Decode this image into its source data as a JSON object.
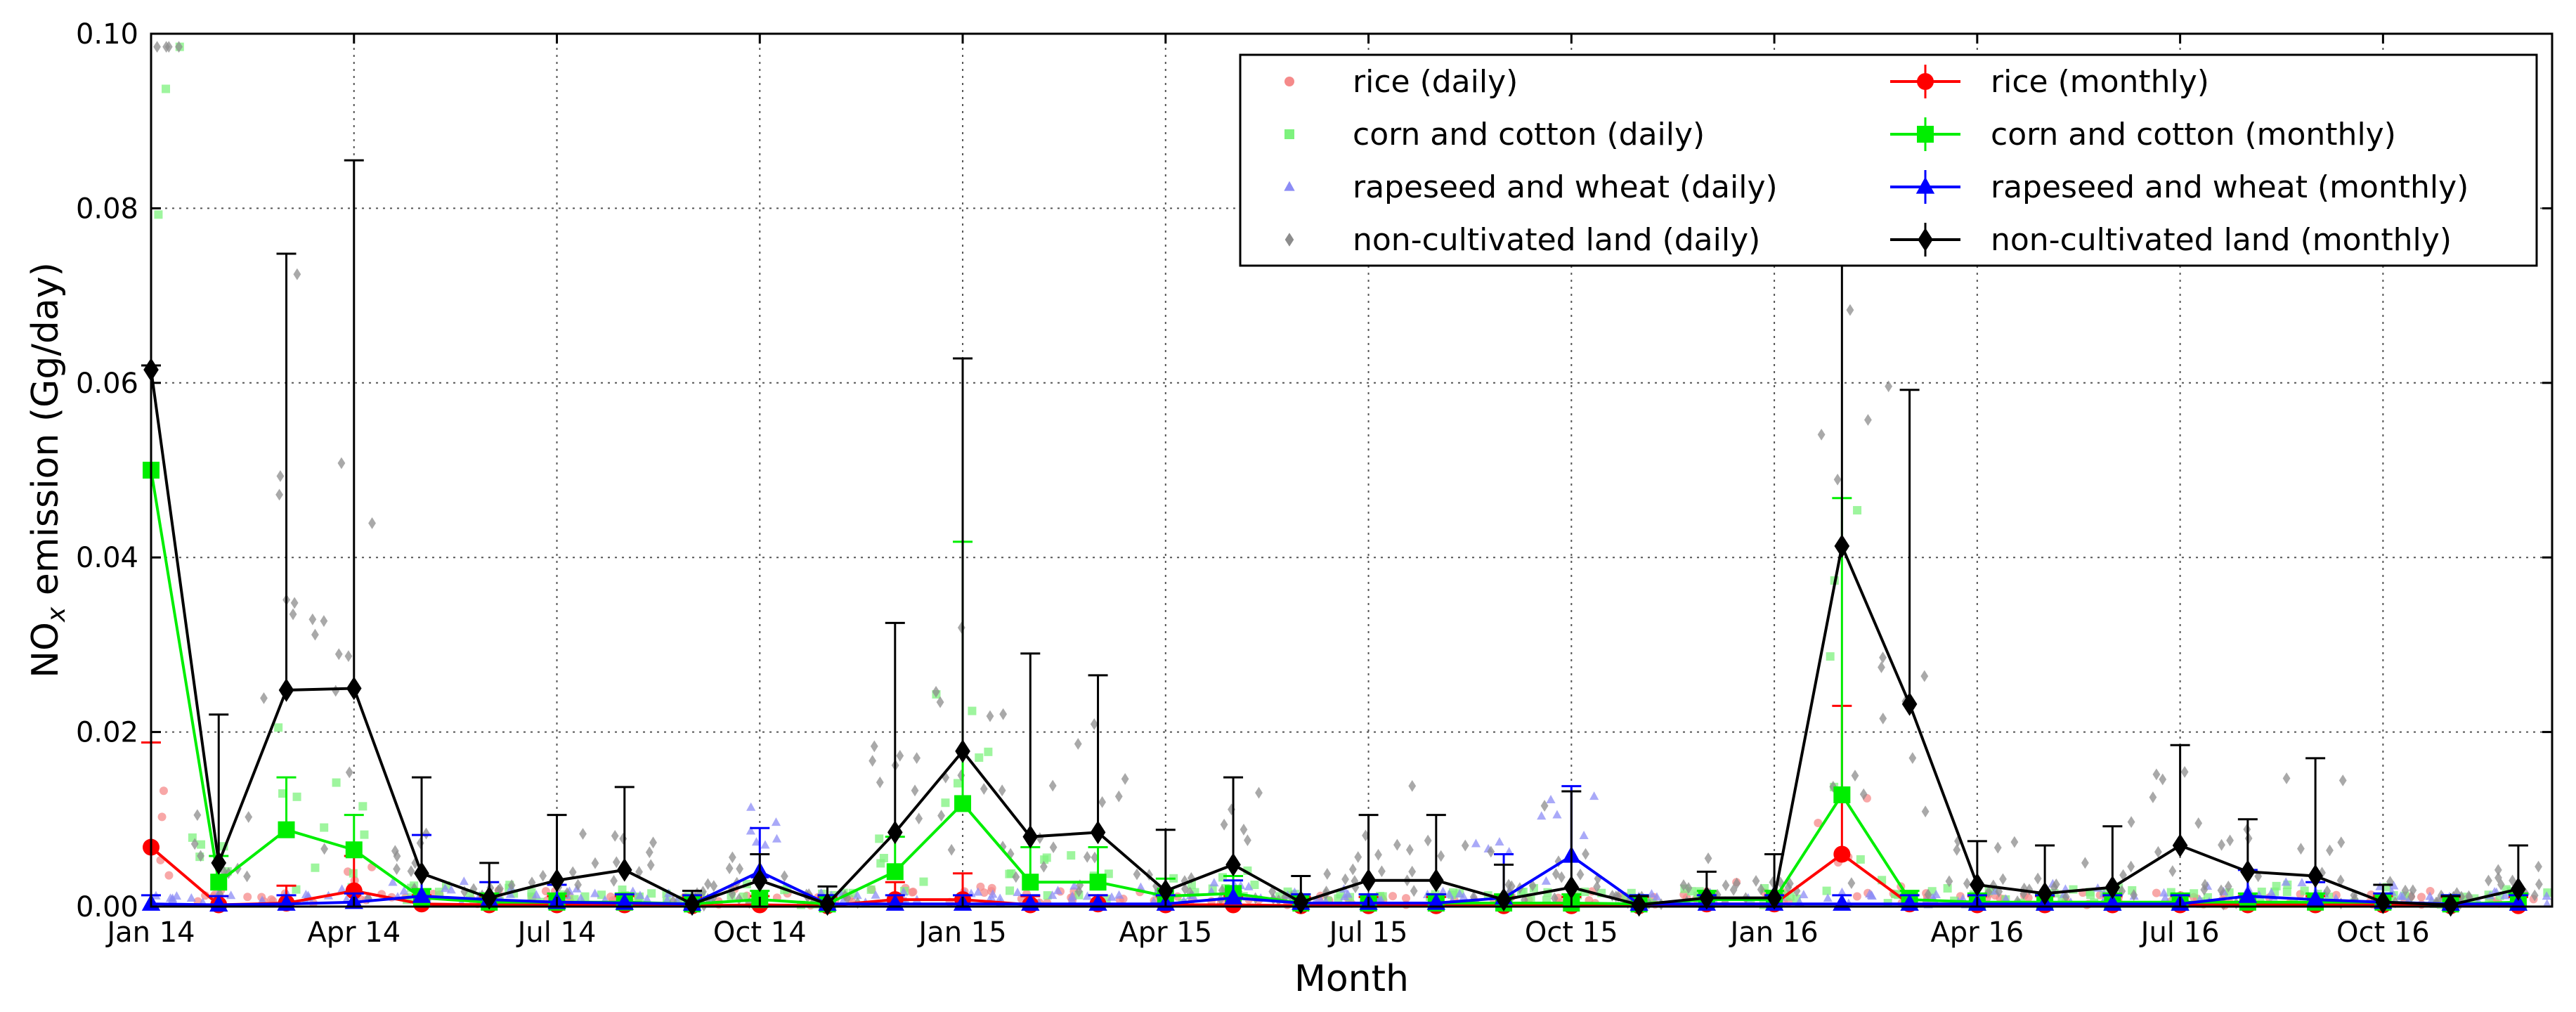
{
  "chart_data": {
    "type": "line",
    "title": "",
    "xlabel": "Month",
    "ylabel_main": "NO",
    "ylabel_sub": "x",
    "ylabel_rest": " emission (Gg/day)",
    "ylim": [
      0,
      0.1
    ],
    "xlim": [
      0,
      35.5
    ],
    "grid": true,
    "legend_position": "top-right",
    "yticks": [
      0.0,
      0.02,
      0.04,
      0.06,
      0.08,
      0.1
    ],
    "ytick_labels": [
      "0.00",
      "0.02",
      "0.04",
      "0.06",
      "0.08",
      "0.10"
    ],
    "xticks": [
      0,
      3,
      6,
      9,
      12,
      15,
      18,
      21,
      24,
      27,
      30,
      33
    ],
    "xtick_labels": [
      "Jan 14",
      "Apr 14",
      "Jul 14",
      "Oct 14",
      "Jan 15",
      "Apr 15",
      "Jul 15",
      "Oct 15",
      "Jan 16",
      "Apr 16",
      "Jul 16",
      "Oct 16"
    ],
    "x": [
      0,
      1,
      2,
      3,
      4,
      5,
      6,
      7,
      8,
      9,
      10,
      11,
      12,
      13,
      14,
      15,
      16,
      17,
      18,
      19,
      20,
      21,
      22,
      23,
      24,
      25,
      26,
      27,
      28,
      29,
      30,
      31,
      32,
      33,
      34,
      35
    ],
    "series": [
      {
        "name": "rice (monthly)",
        "color": "#ff0000",
        "marker": "circle",
        "values": [
          0.0068,
          0.0002,
          0.0004,
          0.0018,
          0.0003,
          0.0002,
          0.0002,
          0.0002,
          0.0001,
          0.0002,
          0.0001,
          0.0008,
          0.0008,
          0.0002,
          0.0003,
          0.0002,
          0.0002,
          0.0001,
          0.0001,
          0.0001,
          0.0001,
          0.0001,
          0.0001,
          0.0003,
          0.0003,
          0.006,
          0.0003,
          0.0002,
          0.0002,
          0.0002,
          0.0002,
          0.0002,
          0.0002,
          0.0002,
          0.0001,
          0.0001
        ],
        "err": [
          0.012,
          0.001,
          0.002,
          0.004,
          0.001,
          0.001,
          0.001,
          0.001,
          0.001,
          0.001,
          0.001,
          0.002,
          0.003,
          0.001,
          0.001,
          0.001,
          0.001,
          0.001,
          0.001,
          0.001,
          0.001,
          0.001,
          0.001,
          0.001,
          0.001,
          0.017,
          0.001,
          0.001,
          0.001,
          0.001,
          0.001,
          0.001,
          0.001,
          0.001,
          0.001,
          0.001
        ]
      },
      {
        "name": "corn and cotton (monthly)",
        "color": "#00ee00",
        "marker": "square",
        "values": [
          0.05,
          0.0028,
          0.0088,
          0.0065,
          0.001,
          0.0005,
          0.0005,
          0.0005,
          0.0003,
          0.0008,
          0.0003,
          0.004,
          0.0118,
          0.0028,
          0.0028,
          0.0012,
          0.0015,
          0.0004,
          0.0004,
          0.0004,
          0.0004,
          0.0004,
          0.0003,
          0.0008,
          0.0008,
          0.0128,
          0.0008,
          0.0005,
          0.0005,
          0.0005,
          0.0005,
          0.0005,
          0.0005,
          0.0005,
          0.0003,
          0.0005
        ],
        "err": [
          0.012,
          0.003,
          0.006,
          0.004,
          0.001,
          0.001,
          0.001,
          0.001,
          0.001,
          0.001,
          0.001,
          0.004,
          0.03,
          0.004,
          0.004,
          0.002,
          0.002,
          0.001,
          0.001,
          0.001,
          0.001,
          0.001,
          0.001,
          0.001,
          0.001,
          0.034,
          0.001,
          0.001,
          0.001,
          0.001,
          0.001,
          0.001,
          0.001,
          0.001,
          0.001,
          0.001
        ]
      },
      {
        "name": "rapeseed and wheat (monthly)",
        "color": "#0000ff",
        "marker": "triangle",
        "values": [
          0.0003,
          0.0002,
          0.0003,
          0.0005,
          0.0012,
          0.0008,
          0.0005,
          0.0004,
          0.0003,
          0.004,
          0.0003,
          0.0003,
          0.0003,
          0.0003,
          0.0003,
          0.0003,
          0.001,
          0.0004,
          0.0004,
          0.0004,
          0.001,
          0.0058,
          0.0003,
          0.0003,
          0.0003,
          0.0003,
          0.0003,
          0.0003,
          0.0003,
          0.0003,
          0.0003,
          0.0012,
          0.0008,
          0.0005,
          0.0003,
          0.0003
        ],
        "err": [
          0.001,
          0.001,
          0.001,
          0.001,
          0.007,
          0.002,
          0.002,
          0.001,
          0.001,
          0.005,
          0.001,
          0.001,
          0.001,
          0.001,
          0.001,
          0.001,
          0.002,
          0.001,
          0.001,
          0.001,
          0.005,
          0.008,
          0.001,
          0.001,
          0.001,
          0.001,
          0.001,
          0.001,
          0.001,
          0.001,
          0.001,
          0.003,
          0.002,
          0.001,
          0.001,
          0.001
        ]
      },
      {
        "name": "non-cultivated land (monthly)",
        "color": "#000000",
        "marker": "diamond",
        "values": [
          0.0615,
          0.005,
          0.0248,
          0.025,
          0.0038,
          0.001,
          0.003,
          0.0042,
          0.0003,
          0.003,
          0.0003,
          0.0085,
          0.0178,
          0.008,
          0.0085,
          0.0018,
          0.0048,
          0.0005,
          0.003,
          0.003,
          0.0008,
          0.0022,
          0.0002,
          0.001,
          0.001,
          0.0413,
          0.0232,
          0.0025,
          0.0015,
          0.0022,
          0.007,
          0.004,
          0.0035,
          0.0005,
          0.0002,
          0.002
        ],
        "err": [
          0.0005,
          0.017,
          0.05,
          0.0605,
          0.011,
          0.004,
          0.0075,
          0.0095,
          0.0015,
          0.003,
          0.002,
          0.024,
          0.045,
          0.021,
          0.018,
          0.007,
          0.01,
          0.003,
          0.0075,
          0.0075,
          0.004,
          0.011,
          0.001,
          0.003,
          0.005,
          0.04,
          0.036,
          0.005,
          0.0055,
          0.007,
          0.0115,
          0.006,
          0.0135,
          0.002,
          0.001,
          0.005
        ]
      }
    ],
    "legend": [
      {
        "label": "rice (daily)",
        "color": "#f58a8a",
        "marker": "circle"
      },
      {
        "label": "corn and cotton (daily)",
        "color": "#7df27d",
        "marker": "square"
      },
      {
        "label": "rapeseed and wheat (daily)",
        "color": "#8c8cf5",
        "marker": "triangle"
      },
      {
        "label": "non-cultivated land (daily)",
        "color": "#8c8c8c",
        "marker": "diamond"
      },
      {
        "label": "rice (monthly)",
        "color": "#ff0000",
        "marker": "circle"
      },
      {
        "label": "corn and cotton (monthly)",
        "color": "#00ee00",
        "marker": "square"
      },
      {
        "label": "rapeseed and wheat (monthly)",
        "color": "#0000ff",
        "marker": "triangle"
      },
      {
        "label": "non-cultivated land (monthly)",
        "color": "#000000",
        "marker": "diamond"
      }
    ]
  }
}
